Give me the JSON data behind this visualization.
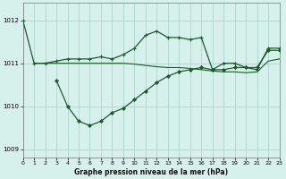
{
  "title": "Graphe pression niveau de la mer (hPa)",
  "bg_color": "#d6f0ec",
  "grid_color": "#aed4ce",
  "line_color": "#1a5c2a",
  "x_min": 0,
  "x_max": 23,
  "y_min": 1008.8,
  "y_max": 1012.4,
  "yticks": [
    1009,
    1010,
    1011,
    1012
  ],
  "xticks": [
    0,
    1,
    2,
    3,
    4,
    5,
    6,
    7,
    8,
    9,
    10,
    11,
    12,
    13,
    14,
    15,
    16,
    17,
    18,
    19,
    20,
    21,
    22,
    23
  ],
  "series1_x": [
    0,
    1,
    2,
    3,
    4,
    5,
    6,
    7,
    8,
    9,
    10,
    11,
    12,
    13,
    14,
    15,
    16,
    17,
    18,
    19,
    20,
    21,
    22,
    23
  ],
  "series1_y": [
    1012.0,
    1011.0,
    1011.0,
    1011.05,
    1011.1,
    1011.1,
    1011.1,
    1011.15,
    1011.1,
    1011.2,
    1011.35,
    1011.65,
    1011.75,
    1011.6,
    1011.6,
    1011.55,
    1011.6,
    1010.85,
    1011.0,
    1011.0,
    1010.9,
    1010.85,
    1011.35,
    1011.35
  ],
  "series2_x": [
    3,
    4,
    5,
    6,
    7,
    8,
    9,
    10,
    11,
    12,
    13,
    14,
    15,
    16,
    17,
    18,
    19,
    20,
    21,
    22,
    23
  ],
  "series2_y": [
    1010.6,
    1010.0,
    1009.65,
    1009.55,
    1009.65,
    1009.85,
    1009.95,
    1010.15,
    1010.35,
    1010.55,
    1010.7,
    1010.8,
    1010.85,
    1010.9,
    1010.85,
    1010.85,
    1010.9,
    1010.9,
    1010.9,
    1011.3,
    1011.3
  ],
  "series3_x": [
    1,
    2,
    3,
    4,
    5,
    6,
    7,
    8,
    9,
    10,
    11,
    12,
    13,
    14,
    15,
    16,
    17,
    18,
    19,
    20,
    21,
    22,
    23
  ],
  "series3_y": [
    1011.0,
    1011.0,
    1011.0,
    1011.0,
    1011.0,
    1011.0,
    1011.0,
    1011.0,
    1011.0,
    1010.98,
    1010.95,
    1010.92,
    1010.9,
    1010.9,
    1010.88,
    1010.85,
    1010.82,
    1010.8,
    1010.8,
    1010.78,
    1010.8,
    1011.05,
    1011.1
  ]
}
